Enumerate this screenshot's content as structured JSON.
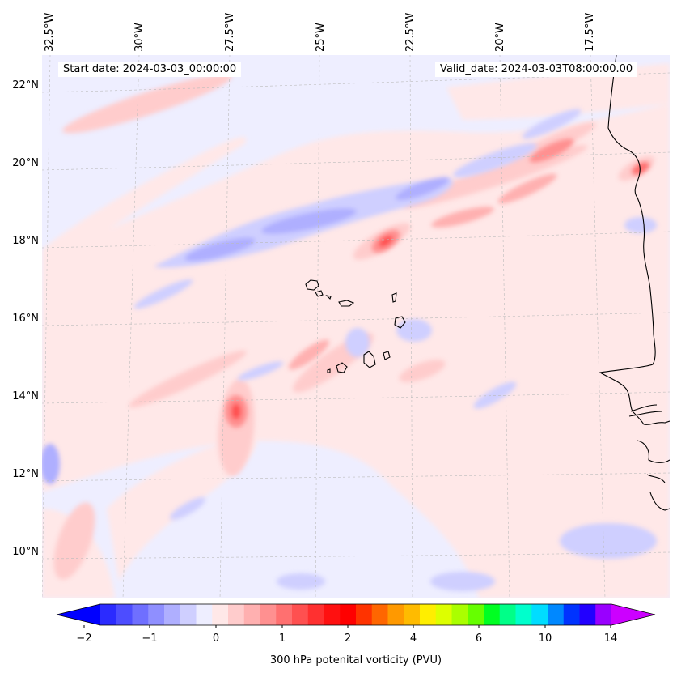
{
  "map": {
    "start_date": "Start date: 2024-03-03_00:00:00",
    "valid_date": "Valid_date: 2024-03-03T08:00:00.00",
    "longitude_labels": [
      "32.5°W",
      "30°W",
      "27.5°W",
      "25°W",
      "22.5°W",
      "20°W",
      "17.5°W"
    ],
    "latitude_labels": [
      "22°N",
      "20°N",
      "18°N",
      "16°N",
      "14°N",
      "12°N",
      "10°N"
    ],
    "gridlines": true,
    "background_color": "#eeeeff"
  },
  "colorbar": {
    "label": "300 hPa potenital vorticity (PVU)",
    "tick_labels": [
      "−2",
      "−1",
      "0",
      "1",
      "2",
      "4",
      "6",
      "10",
      "14"
    ],
    "colors": [
      "#0000ff",
      "#2b2bff",
      "#4d4dff",
      "#6f6fff",
      "#8f8fff",
      "#afafff",
      "#cfcfff",
      "#eeeeff",
      "#ffe8e8",
      "#ffcccc",
      "#ffb0b0",
      "#ff9090",
      "#ff7070",
      "#ff5050",
      "#ff3030",
      "#ff1010",
      "#ff0000",
      "#ff3300",
      "#ff6600",
      "#ff9900",
      "#ffbb00",
      "#ffee00",
      "#ddff00",
      "#aaff00",
      "#66ff00",
      "#00ff22",
      "#00ff88",
      "#00ffcc",
      "#00ddff",
      "#0088ff",
      "#0033ff",
      "#2200ff",
      "#9900ff",
      "#cc00ff"
    ]
  }
}
